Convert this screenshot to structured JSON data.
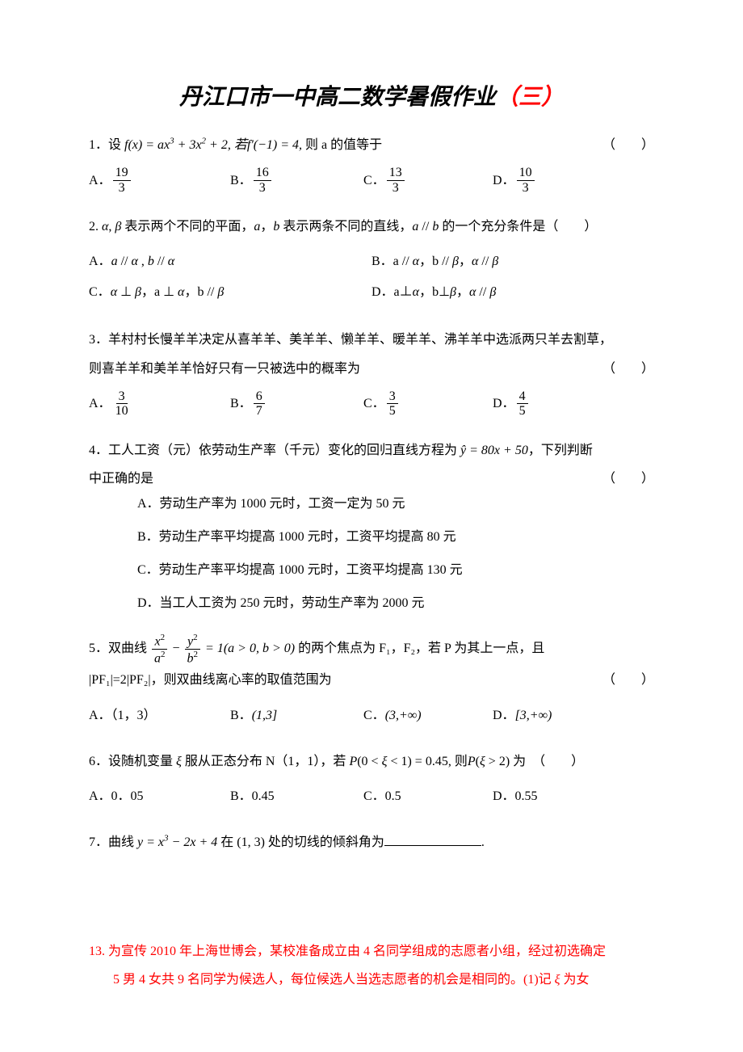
{
  "title_main": "丹江口市一中高二数学暑假作业",
  "title_suffix": "（三）",
  "q1": {
    "text_pre": "1．设 ",
    "formula": "f(x) = ax³ + 3x² + 2, 若f'(−1) = 4, ",
    "text_post": "则 a 的值等于",
    "opt_a": "A．",
    "opt_a_num": "19",
    "opt_a_den": "3",
    "opt_b": "B．",
    "opt_b_num": "16",
    "opt_b_den": "3",
    "opt_c": "C．",
    "opt_c_num": "13",
    "opt_c_den": "3",
    "opt_d": "D．",
    "opt_d_num": "10",
    "opt_d_den": "3"
  },
  "q2": {
    "text": "2. α, β 表示两个不同的平面，a，b 表示两条不同的直线，a // b 的一个充分条件是（　　）",
    "opt_a": "A．a // α , b // α",
    "opt_b": "B．a // α，b // β，α // β",
    "opt_c": "C．α ⊥ β，a ⊥ α，b // β",
    "opt_d": "D．a ⊥ α，b ⊥ β，α // β"
  },
  "q3": {
    "line1": "3．羊村村长慢羊羊决定从喜羊羊、美羊羊、懒羊羊、暖羊羊、沸羊羊中选派两只羊去割草，",
    "line2": "则喜羊羊和美羊羊恰好只有一只被选中的概率为",
    "opt_a": "A．",
    "opt_a_num": "3",
    "opt_a_den": "10",
    "opt_b": "B．",
    "opt_b_num": "6",
    "opt_b_den": "7",
    "opt_c": "C．",
    "opt_c_num": "3",
    "opt_c_den": "5",
    "opt_d": "D．",
    "opt_d_num": "4",
    "opt_d_den": "5"
  },
  "q4": {
    "line1_pre": "4．工人工资（元）依劳动生产率（千元）变化的回归直线方程为 ",
    "line1_formula": "ŷ = 80x + 50",
    "line1_post": "，下列判断",
    "line2": "中正确的是",
    "opt_a": "A．劳动生产率为 1000 元时，工资一定为 50 元",
    "opt_b": "B．劳动生产率平均提高 1000 元时，工资平均提高 80 元",
    "opt_c": "C．劳动生产率平均提高 1000 元时，工资平均提高 130 元",
    "opt_d": "D．当工人工资为 250 元时，劳动生产率为 2000 元"
  },
  "q5": {
    "line1_pre": "5．双曲线 ",
    "line1_post": " 的两个焦点为 F₁，F₂，若 P 为其上一点，且",
    "cond": "= 1(a > 0, b > 0)",
    "line2": "|PF₁|=2|PF₂|，则双曲线离心率的取值范围为",
    "opt_a": "A．（1，3）",
    "opt_b": "B．(1,3]",
    "opt_c": "C．(3,+∞)",
    "opt_d": "D．[3,+∞)"
  },
  "q6": {
    "text_pre": "6．设随机变量 ξ 服从正态分布 N（1，1），若 ",
    "formula": "P(0 < ξ < 1) = 0.45, 则P(ξ > 2)",
    "text_post": " 为　（　　）",
    "opt_a": "A．0．05",
    "opt_b": "B．0.45",
    "opt_c": "C．0.5",
    "opt_d": "D．0.55"
  },
  "q7": {
    "text_pre": "7．曲线 ",
    "formula": "y = x³ − 2x + 4",
    "text_mid": " 在 (1, 3) 处的切线的倾斜角为",
    "text_post": "."
  },
  "q13": {
    "line1": "13. 为宣传 2010 年上海世博会，某校准备成立由 4 名同学组成的志愿者小组，经过初选确定",
    "line2_pre": "5 男 4 女共 9 名同学为候选人，每位候选人当选志愿者的机会是相同的。(1)记 ",
    "line2_post": " 为女"
  },
  "paren": "（　　）"
}
